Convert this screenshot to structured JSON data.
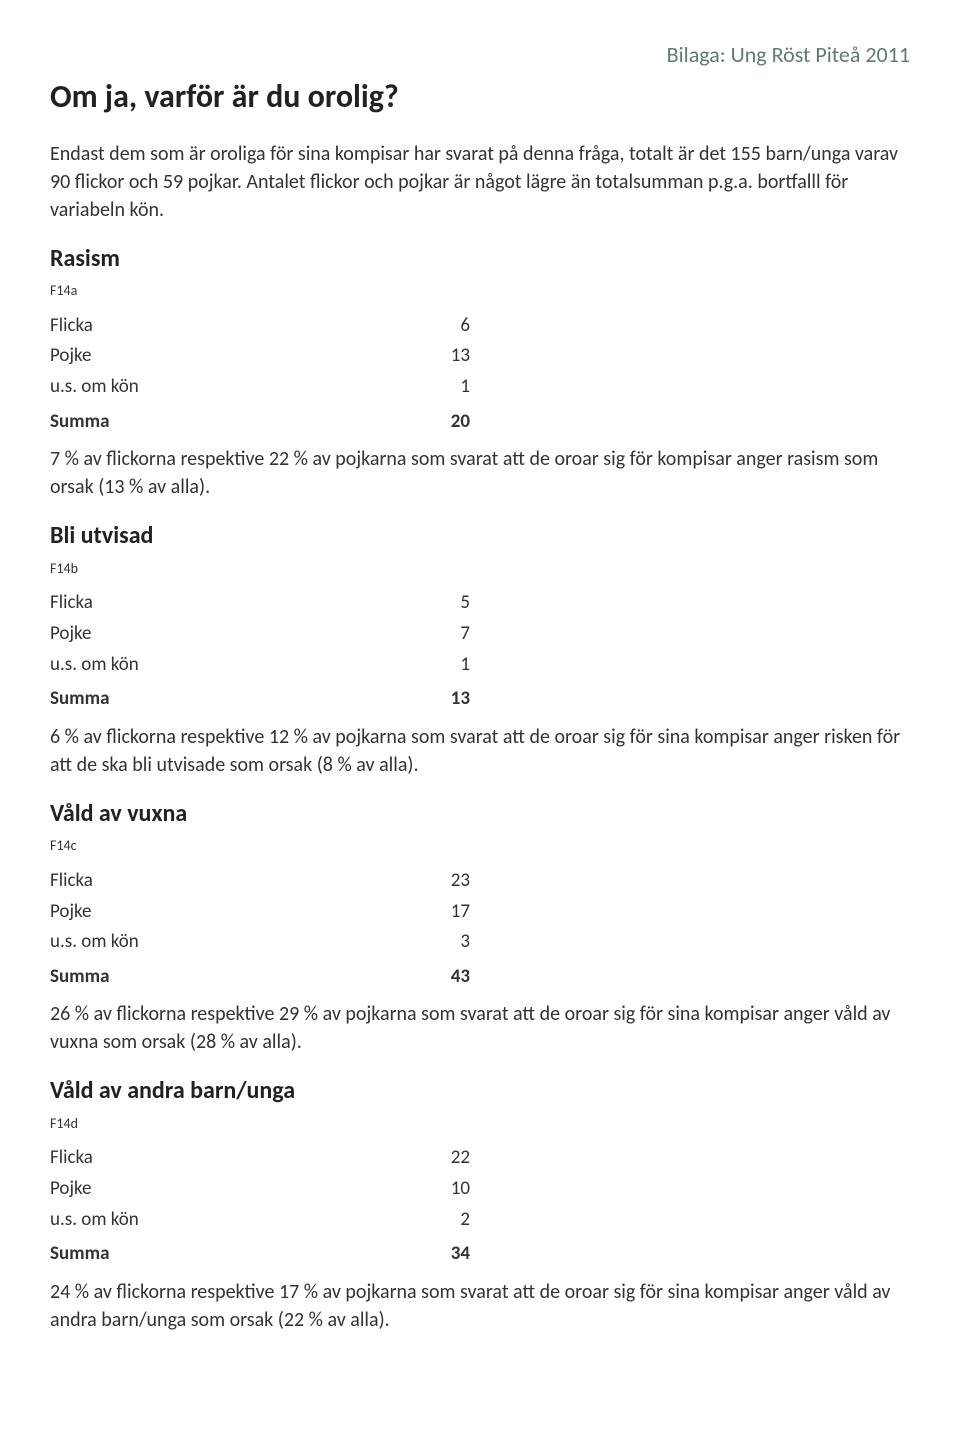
{
  "header_right": "Bilaga: Ung Röst Piteå 2011",
  "main_title": "Om ja, varför är du orolig?",
  "intro": "Endast dem som är oroliga för sina kompisar har svarat på denna fråga, totalt är det 155 barn/unga varav 90 flickor och 59 pojkar. Antalet flickor och pojkar är något lägre än totalsumman p.g.a. bortfalll för variabeln kön.",
  "row_labels": {
    "flicka": "Flicka",
    "pojke": "Pojke",
    "us": "u.s. om kön",
    "summa": "Summa"
  },
  "sections": {
    "rasism": {
      "title": "Rasism",
      "code": "F14a",
      "flicka": "6",
      "pojke": "13",
      "us": "1",
      "summa": "20",
      "note": "7 % av flickorna respektive 22 % av pojkarna som svarat att de oroar sig för kompisar anger rasism som orsak (13 % av alla)."
    },
    "utvisad": {
      "title": "Bli utvisad",
      "code": "F14b",
      "flicka": "5",
      "pojke": "7",
      "us": "1",
      "summa": "13",
      "note": "6 % av flickorna respektive 12 % av pojkarna som svarat att de oroar sig för sina kompisar anger risken för att de ska bli utvisade som orsak (8 % av alla)."
    },
    "vuxna": {
      "title": "Våld av vuxna",
      "code": "F14c",
      "flicka": "23",
      "pojke": "17",
      "us": "3",
      "summa": "43",
      "note": "26 % av flickorna respektive 29 % av pojkarna som svarat att de oroar sig för sina kompisar anger våld av vuxna som orsak (28 % av alla)."
    },
    "barn": {
      "title": "Våld av andra barn/unga",
      "code": "F14d",
      "flicka": "22",
      "pojke": "10",
      "us": "2",
      "summa": "34",
      "note": "24 % av flickorna respektive 17 % av pojkarna som svarat att de oroar sig för sina kompisar anger våld av andra barn/unga som orsak (22 % av alla)."
    }
  }
}
